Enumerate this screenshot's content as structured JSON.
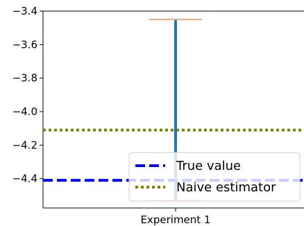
{
  "chart_data": {
    "type": "errorbar",
    "title": "",
    "xlabel": "",
    "ylabel": "",
    "categories": [
      "Experiment 1"
    ],
    "ylim": [
      -4.575,
      -3.4
    ],
    "yticks": [
      -3.4,
      -3.6,
      -3.8,
      -4.0,
      -4.2,
      -4.4
    ],
    "ytick_labels": [
      "−3.4",
      "−3.6",
      "−3.8",
      "−4.0",
      "−4.2",
      "−4.4"
    ],
    "grid": false,
    "errorbar": {
      "category": "Experiment 1",
      "upper": -3.45,
      "lower": -4.53,
      "color": "#1f77b4",
      "cap_color": "#e8a97a"
    },
    "reference_lines": [
      {
        "name": "True value",
        "y": -4.41,
        "color": "#0000ff",
        "style": "dashed"
      },
      {
        "name": "Naive estimator",
        "y": -4.11,
        "color": "#808000",
        "style": "dotted"
      }
    ],
    "legend": {
      "placement": "lower-right",
      "entries": [
        "True value",
        "Naive estimator"
      ]
    }
  }
}
